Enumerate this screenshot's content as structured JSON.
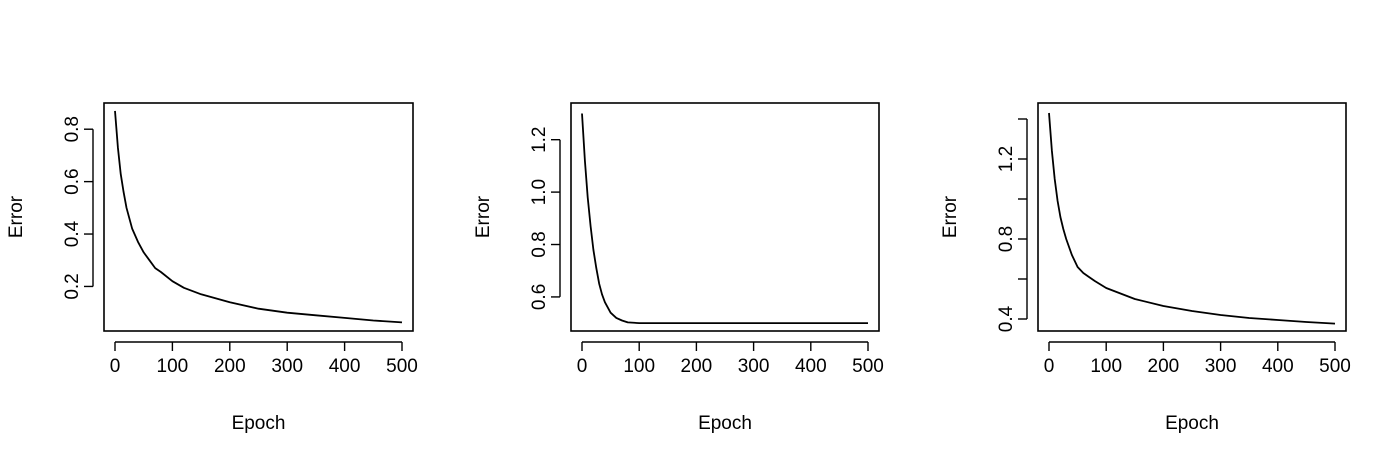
{
  "chart_data": [
    {
      "type": "line",
      "xlabel": "Epoch",
      "ylabel": "Error",
      "xlim": [
        0,
        500
      ],
      "ylim": [
        0.03,
        0.9
      ],
      "xticks": [
        0,
        100,
        200,
        300,
        400,
        500
      ],
      "yticks": [
        0.2,
        0.4,
        0.6,
        0.8
      ],
      "ytick_labels": [
        "0.2",
        "0.4",
        "0.6",
        "0.8"
      ],
      "grid": false,
      "series": [
        {
          "x": [
            0,
            5,
            10,
            15,
            20,
            30,
            40,
            50,
            60,
            70,
            80,
            100,
            120,
            150,
            200,
            250,
            300,
            350,
            400,
            450,
            500
          ],
          "y": [
            0.87,
            0.73,
            0.63,
            0.56,
            0.5,
            0.42,
            0.37,
            0.33,
            0.3,
            0.27,
            0.255,
            0.22,
            0.195,
            0.17,
            0.14,
            0.115,
            0.1,
            0.09,
            0.08,
            0.07,
            0.063
          ]
        }
      ]
    },
    {
      "type": "line",
      "xlabel": "Epoch",
      "ylabel": "Error",
      "xlim": [
        0,
        500
      ],
      "ylim": [
        0.47,
        1.34
      ],
      "xticks": [
        0,
        100,
        200,
        300,
        400,
        500
      ],
      "yticks": [
        0.6,
        0.8,
        1.0,
        1.2
      ],
      "ytick_labels": [
        "0.6",
        "0.8",
        "1.0",
        "1.2"
      ],
      "grid": false,
      "series": [
        {
          "x": [
            0,
            5,
            10,
            15,
            20,
            25,
            30,
            35,
            40,
            50,
            60,
            70,
            80,
            100,
            150,
            200,
            300,
            400,
            500
          ],
          "y": [
            1.3,
            1.12,
            0.98,
            0.87,
            0.78,
            0.71,
            0.65,
            0.61,
            0.58,
            0.54,
            0.52,
            0.51,
            0.503,
            0.5,
            0.5,
            0.5,
            0.5,
            0.5,
            0.5
          ]
        }
      ]
    },
    {
      "type": "line",
      "xlabel": "Epoch",
      "ylabel": "Error",
      "xlim": [
        0,
        500
      ],
      "ylim": [
        0.34,
        1.48
      ],
      "xticks": [
        0,
        100,
        200,
        300,
        400,
        500
      ],
      "yticks": [
        0.4,
        0.6,
        0.8,
        1.0,
        1.2,
        1.4
      ],
      "ytick_labels": [
        "0.4",
        "",
        "0.8",
        "",
        "1.2",
        ""
      ],
      "grid": false,
      "series": [
        {
          "x": [
            0,
            5,
            10,
            15,
            20,
            25,
            30,
            40,
            50,
            60,
            70,
            80,
            100,
            150,
            200,
            250,
            300,
            350,
            400,
            450,
            500
          ],
          "y": [
            1.43,
            1.24,
            1.1,
            0.99,
            0.91,
            0.85,
            0.8,
            0.72,
            0.66,
            0.63,
            0.61,
            0.59,
            0.555,
            0.5,
            0.465,
            0.44,
            0.42,
            0.405,
            0.395,
            0.385,
            0.377
          ]
        }
      ]
    }
  ]
}
